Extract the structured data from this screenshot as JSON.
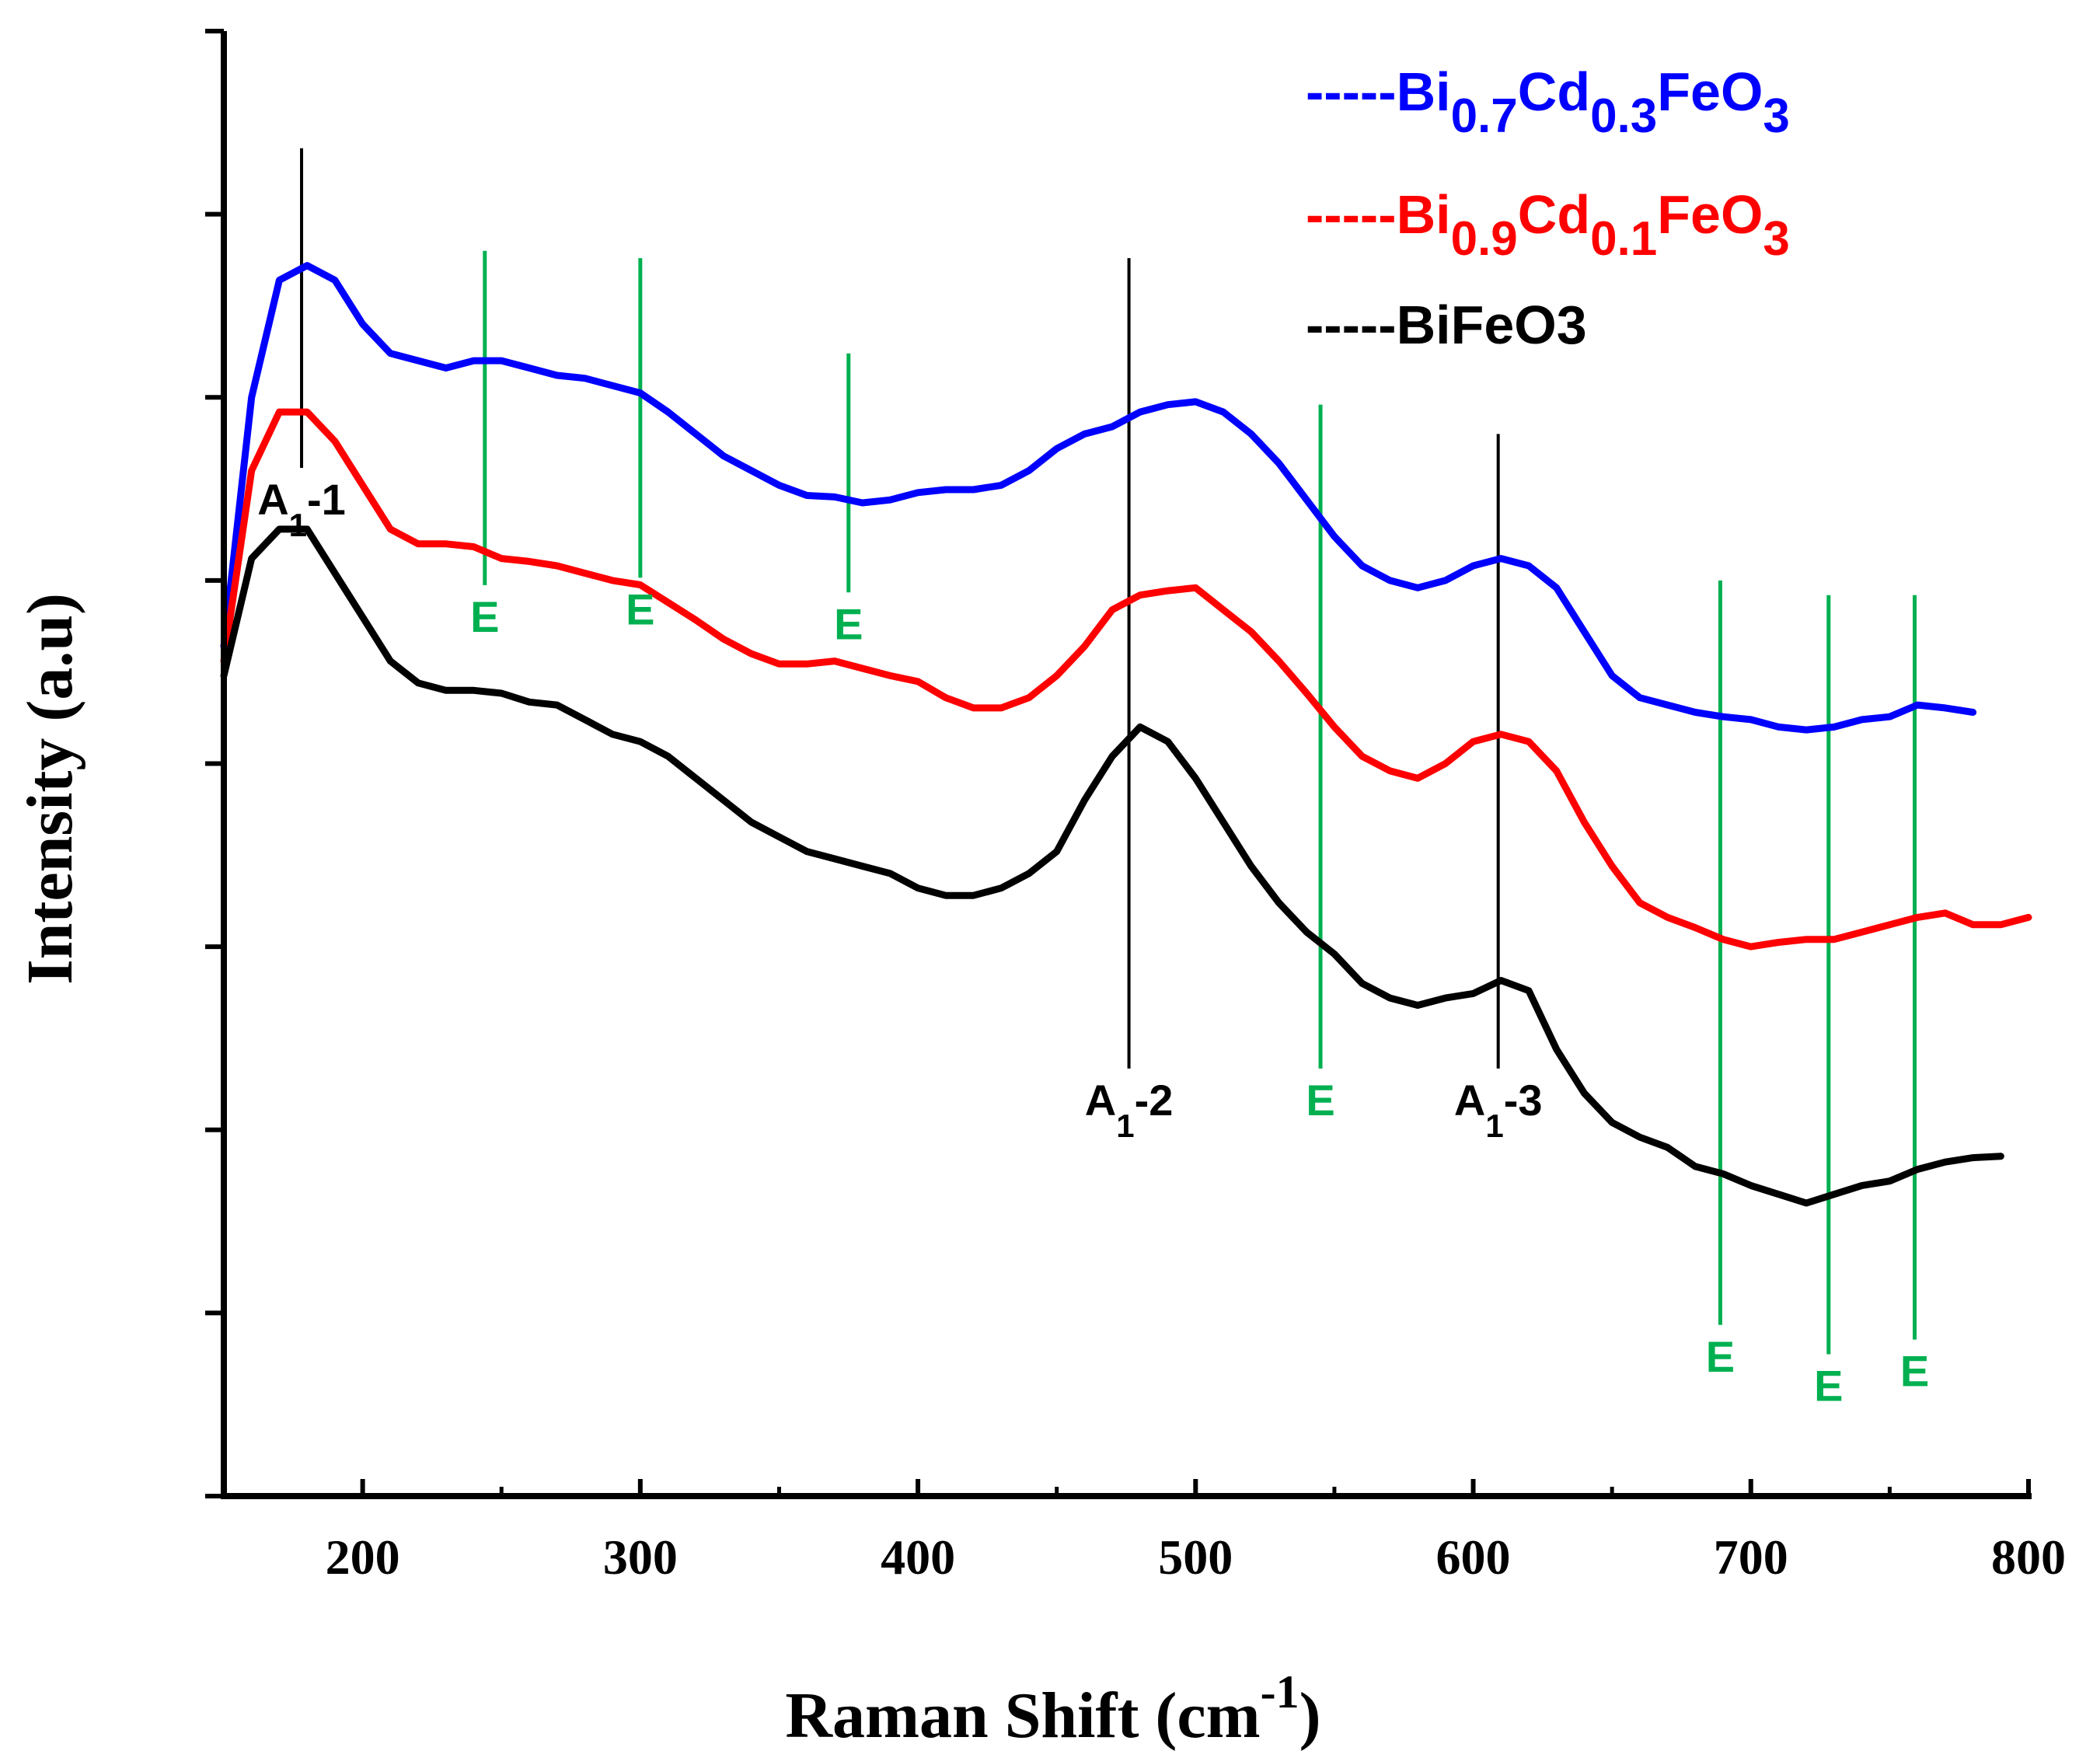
{
  "chart_data": {
    "type": "line",
    "xlabel": "Raman Shift (cm",
    "xlabel_sup": "-1",
    "xlabel_close": ")",
    "ylabel": "Intensity (a.u)",
    "xlim": [
      150,
      800
    ],
    "ylim": [
      0,
      100
    ],
    "xticks": [
      200,
      300,
      400,
      500,
      600,
      700,
      800
    ],
    "xtick_labels": [
      "200",
      "300",
      "400",
      "500",
      "600",
      "700",
      "800"
    ],
    "yticks": [
      0,
      12.5,
      25,
      37.5,
      50,
      62.5,
      75,
      87.5,
      100
    ],
    "grid": false,
    "legend_position": "top-right",
    "series": [
      {
        "name": "Bi0.7Cd0.3FeO3",
        "legend": {
          "prefix": "-----",
          "parts": [
            [
              "Bi",
              ""
            ],
            [
              "0.7",
              "sub"
            ],
            [
              "Cd",
              ""
            ],
            [
              "0.3",
              "sub"
            ],
            [
              "FeO",
              ""
            ],
            [
              "3",
              "sub"
            ]
          ]
        },
        "color": "#0000ff",
        "x": [
          150,
          160,
          170,
          180,
          190,
          200,
          210,
          220,
          230,
          240,
          250,
          260,
          270,
          280,
          290,
          300,
          310,
          320,
          330,
          340,
          350,
          360,
          370,
          380,
          390,
          400,
          410,
          420,
          430,
          440,
          450,
          460,
          470,
          480,
          490,
          500,
          510,
          520,
          530,
          540,
          550,
          560,
          570,
          580,
          590,
          600,
          610,
          620,
          630,
          640,
          650,
          660,
          670,
          680,
          690,
          700,
          710,
          720,
          730,
          740,
          750,
          760,
          770,
          780
        ],
        "y": [
          58,
          75,
          83,
          84,
          83,
          80,
          78,
          77.5,
          77,
          77.5,
          77.5,
          77,
          76.5,
          76.3,
          75.8,
          75.3,
          74,
          72.5,
          71,
          70,
          69,
          68.3,
          68.2,
          67.8,
          68,
          68.5,
          68.7,
          68.7,
          69,
          70,
          71.5,
          72.5,
          73,
          74,
          74.5,
          74.7,
          74,
          72.5,
          70.5,
          68,
          65.5,
          63.5,
          62.5,
          62,
          62.5,
          63.5,
          64,
          63.5,
          62,
          59,
          56,
          54.5,
          54,
          53.5,
          53.2,
          53,
          52.5,
          52.3,
          52.5,
          53,
          53.2,
          54,
          53.8,
          53.5
        ]
      },
      {
        "name": "Bi0.9Cd0.1FeO3",
        "legend": {
          "prefix": "-----",
          "parts": [
            [
              "Bi",
              ""
            ],
            [
              "0.9",
              "sub"
            ],
            [
              "Cd",
              ""
            ],
            [
              "0.1",
              "sub"
            ],
            [
              "FeO",
              ""
            ],
            [
              "3",
              "sub"
            ]
          ]
        },
        "color": "#ff0000",
        "x": [
          150,
          160,
          170,
          180,
          190,
          200,
          210,
          220,
          230,
          240,
          250,
          260,
          270,
          280,
          290,
          300,
          310,
          320,
          330,
          340,
          350,
          360,
          370,
          380,
          390,
          400,
          410,
          420,
          430,
          440,
          450,
          460,
          470,
          480,
          490,
          500,
          510,
          520,
          530,
          540,
          550,
          560,
          570,
          580,
          590,
          600,
          610,
          620,
          630,
          640,
          650,
          660,
          670,
          680,
          690,
          700,
          710,
          720,
          730,
          740,
          750,
          760,
          770,
          780,
          790,
          800
        ],
        "y": [
          57,
          70,
          74,
          74,
          72,
          69,
          66,
          65,
          65,
          64.8,
          64,
          63.8,
          63.5,
          63,
          62.5,
          62.2,
          61,
          59.8,
          58.5,
          57.5,
          56.8,
          56.8,
          57,
          56.5,
          56,
          55.6,
          54.5,
          53.8,
          53.8,
          54.5,
          56,
          58,
          60.5,
          61.5,
          61.8,
          62,
          60.5,
          59,
          57,
          54.8,
          52.5,
          50.5,
          49.5,
          49,
          50,
          51.5,
          52,
          51.5,
          49.5,
          46,
          43,
          40.5,
          39.5,
          38.8,
          38,
          37.5,
          37.8,
          38,
          38,
          38.5,
          39,
          39.5,
          39.8,
          39,
          39,
          39.5
        ]
      },
      {
        "name": "BiFeO3",
        "legend": {
          "prefix": "-----",
          "parts": [
            [
              "BiFeO3",
              ""
            ]
          ]
        },
        "color": "#000000",
        "x": [
          150,
          160,
          170,
          180,
          190,
          200,
          210,
          220,
          230,
          240,
          250,
          260,
          270,
          280,
          290,
          300,
          310,
          320,
          330,
          340,
          350,
          360,
          370,
          380,
          390,
          400,
          410,
          420,
          430,
          440,
          450,
          460,
          470,
          480,
          490,
          500,
          510,
          520,
          530,
          540,
          550,
          560,
          570,
          580,
          590,
          600,
          610,
          620,
          630,
          640,
          650,
          660,
          670,
          680,
          690,
          700,
          710,
          720,
          730,
          740,
          750,
          760,
          770,
          780,
          790
        ],
        "y": [
          56,
          64,
          66,
          66,
          63,
          60,
          57,
          55.5,
          55,
          55,
          54.8,
          54.2,
          54,
          53,
          52,
          51.5,
          50.5,
          49,
          47.5,
          46,
          45,
          44,
          43.5,
          43,
          42.5,
          41.5,
          41,
          41,
          41.5,
          42.5,
          44,
          47.5,
          50.5,
          52.5,
          51.5,
          49,
          46,
          43,
          40.5,
          38.5,
          37,
          35,
          34,
          33.5,
          34,
          34.3,
          35.2,
          34.5,
          30.5,
          27.5,
          25.5,
          24.5,
          23.8,
          22.5,
          22,
          21.2,
          20.6,
          20,
          20.6,
          21.2,
          21.5,
          22.3,
          22.8,
          23.1,
          23.2
        ]
      }
    ],
    "mode_lines": [
      {
        "x": 178,
        "label": "A",
        "sub": "1",
        "suffix": "-1",
        "kind": "A1",
        "top": 92,
        "label_at": 67
      },
      {
        "x": 476,
        "label": "A",
        "sub": "1",
        "suffix": "-2",
        "kind": "A1",
        "top": 84.5,
        "label_at": 26
      },
      {
        "x": 609,
        "label": "A",
        "sub": "1",
        "suffix": "-3",
        "kind": "A1",
        "top": 72.5,
        "label_at": 26
      },
      {
        "x": 244,
        "label": "E",
        "kind": "E",
        "top": 85,
        "label_at": 59
      },
      {
        "x": 300,
        "label": "E",
        "kind": "E",
        "top": 84.5,
        "label_at": 59.5
      },
      {
        "x": 375,
        "label": "E",
        "kind": "E",
        "top": 78,
        "label_at": 58.5
      },
      {
        "x": 545,
        "label": "E",
        "kind": "E",
        "top": 74.5,
        "label_at": 26
      },
      {
        "x": 689,
        "label": "E",
        "kind": "E",
        "top": 62.5,
        "label_at": 8.5
      },
      {
        "x": 728,
        "label": "E",
        "kind": "E",
        "top": 61.5,
        "label_at": 6.5
      },
      {
        "x": 759,
        "label": "E",
        "kind": "E",
        "top": 61.5,
        "label_at": 7.5
      }
    ],
    "colors": {
      "A1": "#000000",
      "E": "#00b050"
    }
  }
}
